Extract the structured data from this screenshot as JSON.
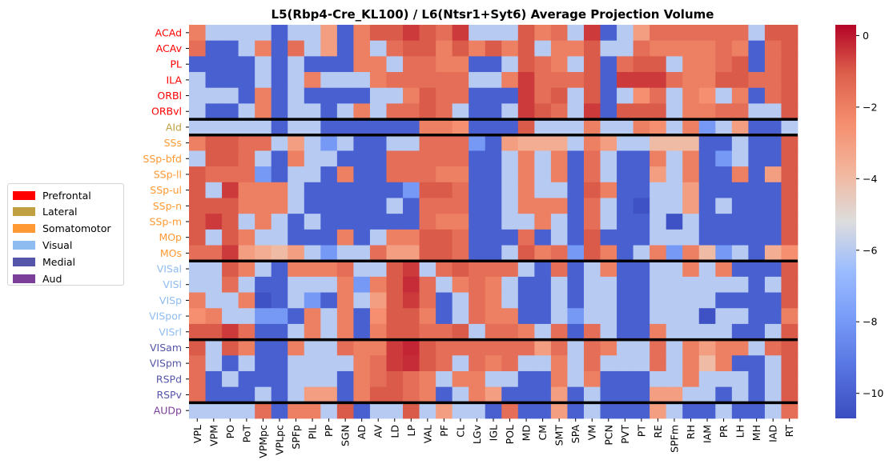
{
  "chart_data": {
    "type": "heatmap",
    "title": "L5(Rbp4-Cre_KL100) / L6(Ntsr1+Syt6) Average Projection Volume",
    "xlabel": "",
    "ylabel": "",
    "columns": [
      "VPL",
      "VPM",
      "PO",
      "PoT",
      "VPMpc",
      "VPLpc",
      "SPFp",
      "PIL",
      "PP",
      "SGN",
      "AD",
      "AV",
      "LD",
      "LP",
      "VAL",
      "PF",
      "CL",
      "LGv",
      "IGL",
      "POL",
      "MD",
      "CM",
      "SMT",
      "SPA",
      "VM",
      "PCN",
      "PVT",
      "PT",
      "RE",
      "SPFm",
      "RH",
      "IAM",
      "PR",
      "LH",
      "MH",
      "IAD",
      "RT"
    ],
    "rows": [
      "ACAd",
      "ACAv",
      "PL",
      "ILA",
      "ORBl",
      "ORBvl",
      "AId",
      "SSs",
      "SSp-bfd",
      "SSp-ll",
      "SSp-ul",
      "SSp-n",
      "SSp-m",
      "MOp",
      "MOs",
      "VISal",
      "VISl",
      "VISp",
      "VISpor",
      "VISrl",
      "VISam",
      "VISpm",
      "RSPd",
      "RSPv",
      "AUDp"
    ],
    "row_groups": [
      "Prefrontal",
      "Prefrontal",
      "Prefrontal",
      "Prefrontal",
      "Prefrontal",
      "Prefrontal",
      "Lateral",
      "Somatomotor",
      "Somatomotor",
      "Somatomotor",
      "Somatomotor",
      "Somatomotor",
      "Somatomotor",
      "Somatomotor",
      "Somatomotor",
      "Visual",
      "Visual",
      "Visual",
      "Visual",
      "Visual",
      "Medial",
      "Medial",
      "Medial",
      "Medial",
      "Aud"
    ],
    "group_colors": {
      "Prefrontal": "#ff0000",
      "Lateral": "#c0a040",
      "Somatomotor": "#ff9933",
      "Visual": "#8fbcf0",
      "Medial": "#5555aa",
      "Aud": "#7b3f99"
    },
    "separators_after_row": [
      5,
      6,
      14,
      19,
      23
    ],
    "colorbar": {
      "min": -10.7,
      "max": 0.3,
      "ticks": [
        0,
        -2,
        -4,
        -6,
        -8,
        -10
      ],
      "cmap": "coolwarm"
    },
    "values": [
      [
        -2,
        -6,
        -6,
        -6,
        -6,
        -10,
        -6,
        -6,
        -3,
        -10,
        -2,
        -1,
        -1,
        -0.5,
        -1,
        -1.5,
        -0.5,
        -6,
        -6,
        -6,
        -1,
        -2,
        -1.5,
        -6,
        -0.5,
        -10,
        -6,
        -3,
        -1.5,
        -1.5,
        -1.5,
        -1.5,
        -1.5,
        -1.5,
        -6,
        -1,
        -1
      ],
      [
        -1.5,
        -10,
        -10,
        -6,
        -2,
        -10,
        -1.5,
        -6,
        -3,
        -10,
        -2,
        -6,
        -1.5,
        -1,
        -1,
        -2,
        -1,
        -2,
        -1,
        -2,
        -1,
        -6,
        -2,
        -2,
        -1,
        -6,
        -6,
        -1.5,
        -2,
        -2,
        -2,
        -2,
        -1.5,
        -2,
        -10,
        -1.5,
        -1
      ],
      [
        -10,
        -10,
        -10,
        -10,
        -6,
        -10,
        -6,
        -10,
        -10,
        -10,
        -2,
        -2,
        -6,
        -1.5,
        -1.5,
        -2,
        -2,
        -10,
        -10,
        -6,
        -1,
        -1.5,
        -2,
        -6,
        -1,
        -10,
        -1.5,
        -1,
        -1,
        -6,
        -2,
        -2,
        -1.5,
        -1,
        -10,
        -1.5,
        -1
      ],
      [
        -6,
        -10,
        -10,
        -10,
        -6,
        -10,
        -6,
        -2,
        -6,
        -6,
        -6,
        -2,
        -1.5,
        -1.5,
        -1.5,
        -1.5,
        -1.5,
        -6,
        -6,
        -2,
        -0.5,
        -1.5,
        -1.5,
        -1.5,
        -1,
        -10,
        -0.5,
        -0.5,
        -0.5,
        -1.5,
        -2,
        -2,
        -1,
        -1,
        -1.5,
        -1.5,
        -1
      ],
      [
        -6,
        -6,
        -6,
        -10,
        -2,
        -10,
        -6,
        -10,
        -10,
        -10,
        -10,
        -6,
        -6,
        -2,
        -1,
        -1.5,
        -1.5,
        -10,
        -10,
        -10,
        -0.5,
        -1.5,
        -1,
        -6,
        -1,
        -10,
        -6,
        -2.5,
        -1.5,
        -6,
        -2,
        -2.5,
        -6,
        -2,
        -10,
        -1.5,
        -1
      ],
      [
        -6,
        -10,
        -10,
        -6,
        -2,
        -10,
        -6,
        -6,
        -10,
        -6,
        -2,
        -6,
        -1.5,
        -1.5,
        -1,
        -1.5,
        -6,
        -10,
        -10,
        -6,
        -0.5,
        -1,
        -1.5,
        -6,
        -0.5,
        -10,
        -1,
        -1,
        -1,
        -6,
        -2,
        -2,
        -1.5,
        -1.5,
        -6,
        -6,
        -1
      ],
      [
        -6,
        -6,
        -6,
        -6,
        -6,
        -10,
        -6,
        -6,
        -10,
        -10,
        -10,
        -10,
        -10,
        -10,
        -2,
        -2,
        -2.5,
        -10,
        -10,
        -10,
        -1,
        -6,
        -6,
        -6,
        -2,
        -6,
        -6,
        -2,
        -2.5,
        -6,
        -2,
        -8,
        -6,
        -3,
        -10,
        -10,
        -6
      ],
      [
        -2,
        -1,
        -1,
        -1.5,
        -1.5,
        -6,
        -3,
        -6,
        -8,
        -6,
        -10,
        -10,
        -6,
        -6,
        -1.5,
        -1.5,
        -1.5,
        -8,
        -10,
        -3,
        -3.5,
        -3.5,
        -3.5,
        -6,
        -2,
        -3,
        -6,
        -6,
        -4,
        -4,
        -4,
        -10,
        -10,
        -6,
        -10,
        -10,
        -1
      ],
      [
        -6,
        -1,
        -1,
        -1.5,
        -6,
        -10,
        -2,
        -6,
        -6,
        -10,
        -10,
        -10,
        -1.5,
        -1.5,
        -1.5,
        -1.5,
        -1.5,
        -10,
        -10,
        -6,
        -2,
        -6,
        -2,
        -10,
        -1.5,
        -6,
        -10,
        -10,
        -2,
        -6,
        -2,
        -10,
        -8,
        -6,
        -10,
        -10,
        -1
      ],
      [
        -1,
        -1.5,
        -1.5,
        -1.5,
        -8,
        -10,
        -6,
        -6,
        -10,
        -2,
        -10,
        -10,
        -1.5,
        -1.5,
        -1.5,
        -2,
        -2,
        -10,
        -10,
        -6,
        -2,
        -6,
        -2,
        -10,
        -1.5,
        -6,
        -10,
        -10,
        -3,
        -6,
        -2,
        -10,
        -10,
        -2,
        -10,
        -3,
        -1
      ],
      [
        -1,
        -6,
        -0.5,
        -2,
        -2,
        -2,
        -6,
        -10,
        -10,
        -10,
        -10,
        -10,
        -10,
        -8,
        -1,
        -1,
        -1.5,
        -10,
        -10,
        -6,
        -2,
        -6,
        -6,
        -10,
        -1,
        -2,
        -10,
        -10,
        -6,
        -6,
        -3,
        -10,
        -10,
        -10,
        -10,
        -10,
        -1
      ],
      [
        -1,
        -1,
        -1,
        -2,
        -2,
        -2,
        -6,
        -10,
        -10,
        -10,
        -10,
        -10,
        -6,
        -10,
        -1.5,
        -1.5,
        -1.5,
        -10,
        -10,
        -6,
        -2,
        -2,
        -2,
        -10,
        -1.5,
        -6,
        -10,
        -10.5,
        -6,
        -6,
        -3,
        -10,
        -6,
        -10,
        -10,
        -10,
        -1
      ],
      [
        -1,
        -0.5,
        -1,
        -6,
        -2,
        -6,
        -10,
        -6,
        -10,
        -10,
        -10,
        -10,
        -10,
        -10,
        -1.5,
        -2,
        -2,
        -10,
        -10,
        -6,
        -6,
        -2,
        -6,
        -10,
        -1.5,
        -6,
        -10,
        -10,
        -6,
        -10.5,
        -6,
        -10,
        -10,
        -10,
        -10,
        -10,
        -1
      ],
      [
        -1,
        -6,
        -1,
        -2,
        -6,
        -6,
        -10,
        -10,
        -10,
        -2,
        -10,
        -6,
        -2,
        -2,
        -1,
        -1,
        -1.5,
        -10,
        -10,
        -10,
        -1.5,
        -10,
        -6,
        -10,
        -1,
        -10,
        -10,
        -10,
        -6,
        -6,
        -6,
        -10,
        -10,
        -10,
        -10,
        -10,
        -1
      ],
      [
        -1.5,
        -1.5,
        -0.5,
        -3,
        -3.5,
        -4,
        -3,
        -6,
        -8,
        -6,
        -6,
        -1.5,
        -3,
        -3,
        -1,
        -1,
        -1.5,
        -10,
        -10,
        -6,
        -1,
        -2,
        -1.5,
        -8,
        -1,
        -2,
        -10,
        -6,
        -2,
        -8,
        -2,
        -4,
        -8,
        -6,
        -10,
        -3.5,
        -2.5
      ],
      [
        -6,
        -6,
        -1,
        -2,
        -6,
        -10,
        -2,
        -2,
        -2,
        -1.5,
        -6,
        -6,
        -1,
        -0.5,
        -6,
        -1.5,
        -1,
        -1.5,
        -1.5,
        -1.5,
        -6,
        -10,
        -1.5,
        -10,
        -6,
        -2,
        -10,
        -10,
        -6,
        -6,
        -2,
        -6,
        -2,
        -10,
        -10,
        -10,
        -1
      ],
      [
        -6,
        -6,
        -1.5,
        -6,
        -10,
        -10,
        -6,
        -6,
        -6,
        -2,
        -8,
        -2,
        -1,
        -0.3,
        -1.5,
        -6,
        -2,
        -1.5,
        -2,
        -6,
        -10,
        -10,
        -6,
        -10,
        -6,
        -6,
        -10,
        -10,
        -6,
        -6,
        -6,
        -6,
        -6,
        -6,
        -10,
        -6,
        -1
      ],
      [
        -2,
        -6,
        -6,
        -2,
        -10.5,
        -10,
        -6,
        -8,
        -10,
        -2,
        -6,
        -3,
        -1,
        -0.5,
        -1.5,
        -10,
        -6,
        -1.5,
        -2,
        -6,
        -10,
        -10,
        -6,
        -10,
        -6,
        -6,
        -10,
        -10,
        -6,
        -6,
        -6,
        -6,
        -10,
        -10,
        -10,
        -10,
        -1
      ],
      [
        -2.5,
        -2,
        -6,
        -6,
        -8,
        -8,
        -10,
        -2,
        -6,
        -2,
        -10,
        -2.5,
        -1,
        -1,
        -2,
        -10,
        -6,
        -1.5,
        -2,
        -2,
        -10,
        -10,
        -6,
        -8,
        -6,
        -6,
        -10,
        -10,
        -6,
        -6,
        -6,
        -10.5,
        -6,
        -6,
        -10,
        -10,
        -2
      ],
      [
        -1,
        -1,
        -0.5,
        -1.5,
        -10,
        -10,
        -6,
        -2,
        -6,
        -2,
        -10,
        -2,
        -1,
        -1,
        -1.5,
        -1.5,
        -1,
        -6,
        -1.5,
        -1.5,
        -2,
        -6,
        -1.5,
        -10,
        -1.5,
        -6,
        -10,
        -10,
        -2,
        -6,
        -6,
        -6,
        -6,
        -10,
        -10,
        -6,
        -1
      ],
      [
        -1,
        -6,
        -1,
        -2,
        -10,
        -10,
        -2,
        -6,
        -6,
        -1.5,
        -2,
        -2,
        -0.5,
        -0.2,
        -1,
        -1.5,
        -1.5,
        -1.5,
        -1.5,
        -1.5,
        -1.5,
        -3,
        -1.5,
        -6,
        -1.5,
        -2,
        -6,
        -6,
        -1.5,
        -6,
        -2,
        -3,
        -2,
        -2,
        -6,
        -1.5,
        -1
      ],
      [
        -1.5,
        -6,
        -10,
        -6,
        -10,
        -10,
        -6,
        -6,
        -6,
        -6,
        -2,
        -1.5,
        -0.5,
        -0.3,
        -1,
        -1.5,
        -6,
        -1.5,
        -2,
        -1.5,
        -6,
        -6,
        -2,
        -6,
        -1.5,
        -6,
        -6,
        -6,
        -1.5,
        -6,
        -2,
        -4,
        -2,
        -10,
        -10,
        -6,
        -1
      ],
      [
        -1.5,
        -10,
        -6,
        -10,
        -10,
        -10,
        -6,
        -6,
        -6,
        -10,
        -2,
        -1.5,
        -1,
        -1.5,
        -2,
        -6,
        -2,
        -2,
        -6,
        -6,
        -10,
        -10,
        -2,
        -6,
        -2,
        -10,
        -10,
        -10,
        -6,
        -6,
        -2,
        -6,
        -6,
        -6,
        -10,
        -6,
        -1
      ],
      [
        -1.5,
        -10,
        -10,
        -10,
        -6,
        -10,
        -6,
        -3,
        -3,
        -10,
        -2,
        -1,
        -1,
        -1.5,
        -2,
        -10,
        -6,
        -2,
        -3,
        -10,
        -10,
        -10,
        -3,
        -10,
        -6,
        -10,
        -10,
        -10,
        -3,
        -3,
        -6,
        -6,
        -10,
        -6,
        -10,
        -6,
        -1
      ],
      [
        -6,
        -6,
        -6,
        -6,
        -1.5,
        -10,
        -2,
        -2,
        -6,
        -1,
        -10,
        -6,
        -6,
        -1,
        -6,
        -3,
        -6,
        -6,
        -10,
        -1.5,
        -10,
        -10,
        -3,
        -10,
        -6,
        -10,
        -10,
        -10,
        -3,
        -6,
        -10,
        -10,
        -6,
        -10,
        -10,
        -6,
        -1.5
      ]
    ],
    "legend": [
      {
        "label": "Prefrontal",
        "color": "#ff0000"
      },
      {
        "label": "Lateral",
        "color": "#c0a040"
      },
      {
        "label": "Somatomotor",
        "color": "#ff9933"
      },
      {
        "label": "Visual",
        "color": "#8fbcf0"
      },
      {
        "label": "Medial",
        "color": "#5555aa"
      },
      {
        "label": "Aud",
        "color": "#7b3f99"
      }
    ]
  }
}
